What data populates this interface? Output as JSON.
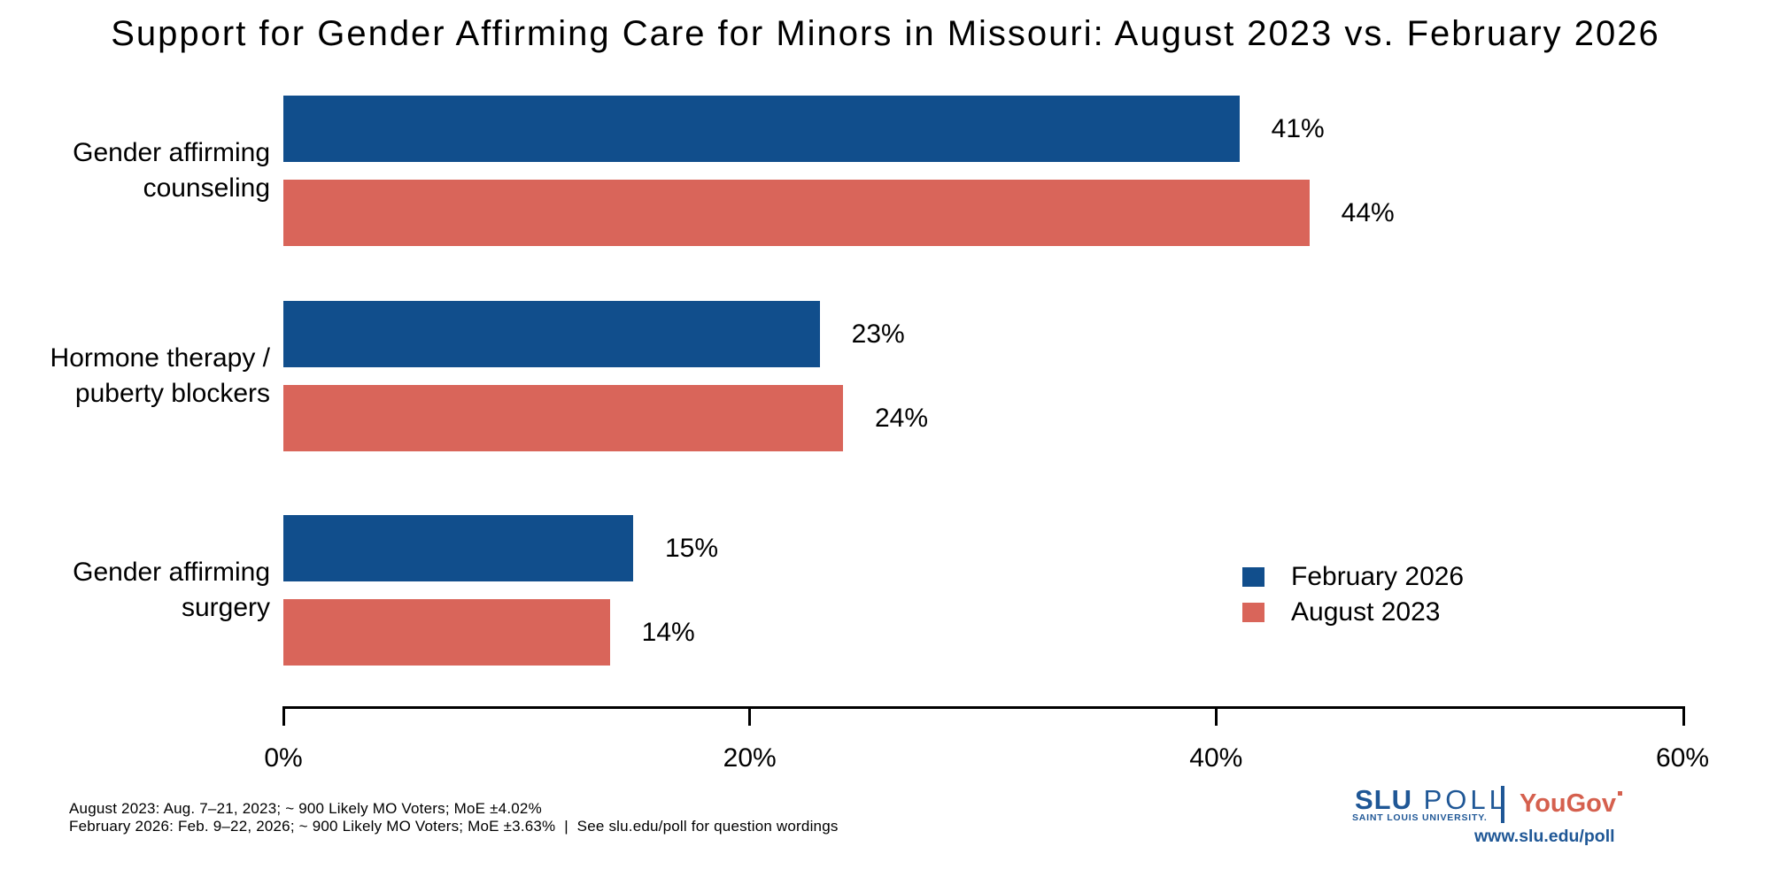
{
  "title": "Support for Gender Affirming Care for Minors in Missouri: August 2023 vs. February 2026",
  "chart_data": {
    "type": "bar",
    "orientation": "horizontal",
    "title": "Support for Gender Affirming Care for Minors in Missouri: August 2023 vs. February 2026",
    "categories": [
      "Gender affirming counseling",
      "Hormone therapy / puberty blockers",
      "Gender affirming surgery"
    ],
    "category_lines": [
      [
        "Gender affirming",
        "counseling"
      ],
      [
        "Hormone therapy /",
        "puberty blockers"
      ],
      [
        "Gender affirming",
        "surgery"
      ]
    ],
    "series": [
      {
        "name": "February 2026",
        "color": "#114E8C",
        "values": [
          41,
          23,
          15
        ]
      },
      {
        "name": "August 2023",
        "color": "#D9655A",
        "values": [
          44,
          24,
          14
        ]
      }
    ],
    "value_labels": [
      [
        "41%",
        "23%",
        "15%"
      ],
      [
        "44%",
        "24%",
        "14%"
      ]
    ],
    "value_suffix": "%",
    "xlim": [
      0,
      60
    ],
    "x_ticks": [
      "0%",
      "20%",
      "40%",
      "60%"
    ],
    "x_tick_values": [
      0,
      20,
      40,
      60
    ],
    "grid": false,
    "legend_position": "right-middle"
  },
  "footer": {
    "line1": "August 2023: Aug. 7–21, 2023; ~ 900 Likely MO Voters; MoE ±4.02%",
    "line2": "February 2026: Feb. 9–22, 2026; ~ 900 Likely MO Voters; MoE ±3.63%  |  See slu.edu/poll for question wordings"
  },
  "branding": {
    "slu": "SLU",
    "poll": " POLL",
    "subtitle": "SAINT LOUIS UNIVERSITY.",
    "partner": "YouGov",
    "partner_mark_icon": "registered-trademark",
    "url": "www.slu.edu/poll",
    "slu_blue": "#1F5796",
    "yougov_red": "#D5604E"
  },
  "colors": {
    "february_2026": "#114E8C",
    "august_2023": "#D9655A",
    "axis": "#000000",
    "background": "#FFFFFF"
  }
}
